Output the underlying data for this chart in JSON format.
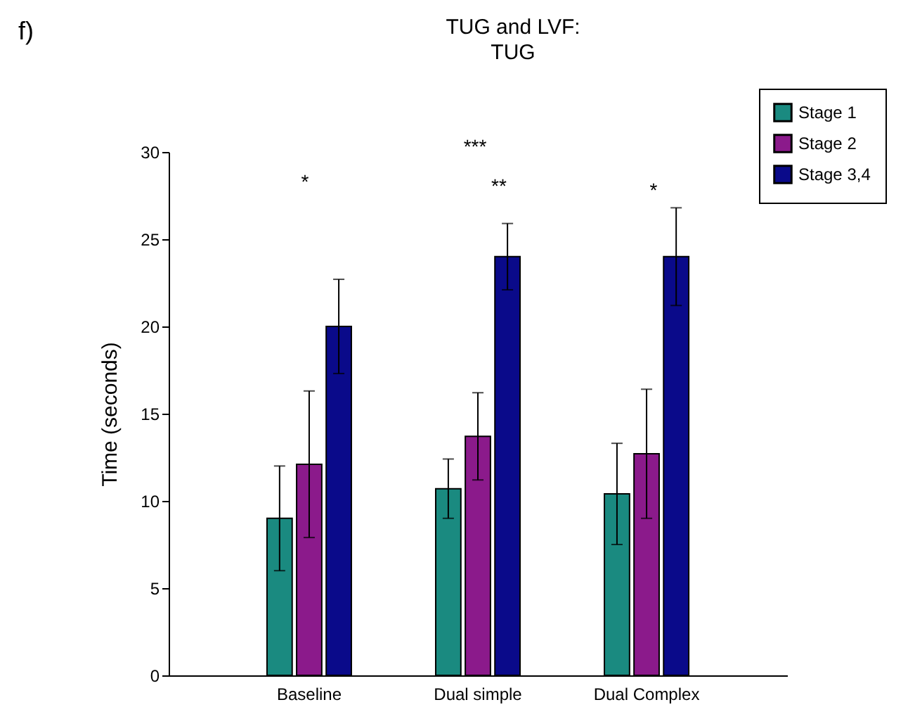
{
  "chart_data": {
    "type": "bar",
    "title": "TUG and LVF:",
    "subtitle": "TUG",
    "ylabel": "Time (seconds)",
    "categories": [
      "Baseline",
      "Dual simple",
      "Dual Complex"
    ],
    "series": [
      {
        "name": "Stage 1",
        "color": "#1a8a80",
        "values": [
          9.0,
          10.7,
          10.4
        ],
        "errors": [
          3.0,
          1.7,
          2.9
        ]
      },
      {
        "name": "Stage 2",
        "color": "#8b1a8b",
        "values": [
          12.1,
          13.7,
          12.7
        ],
        "errors": [
          4.2,
          2.5,
          3.7
        ]
      },
      {
        "name": "Stage 3,4",
        "color": "#0a0a8a",
        "values": [
          20.0,
          24.0,
          24.0
        ],
        "errors": [
          2.7,
          1.9,
          2.8
        ]
      }
    ],
    "ylim": [
      0,
      30
    ],
    "yticks": [
      0,
      5,
      10,
      15,
      20,
      25,
      30
    ],
    "grid": false,
    "legend": "top right",
    "annotations": [
      "f)",
      "*",
      "***",
      "**",
      "*"
    ]
  }
}
